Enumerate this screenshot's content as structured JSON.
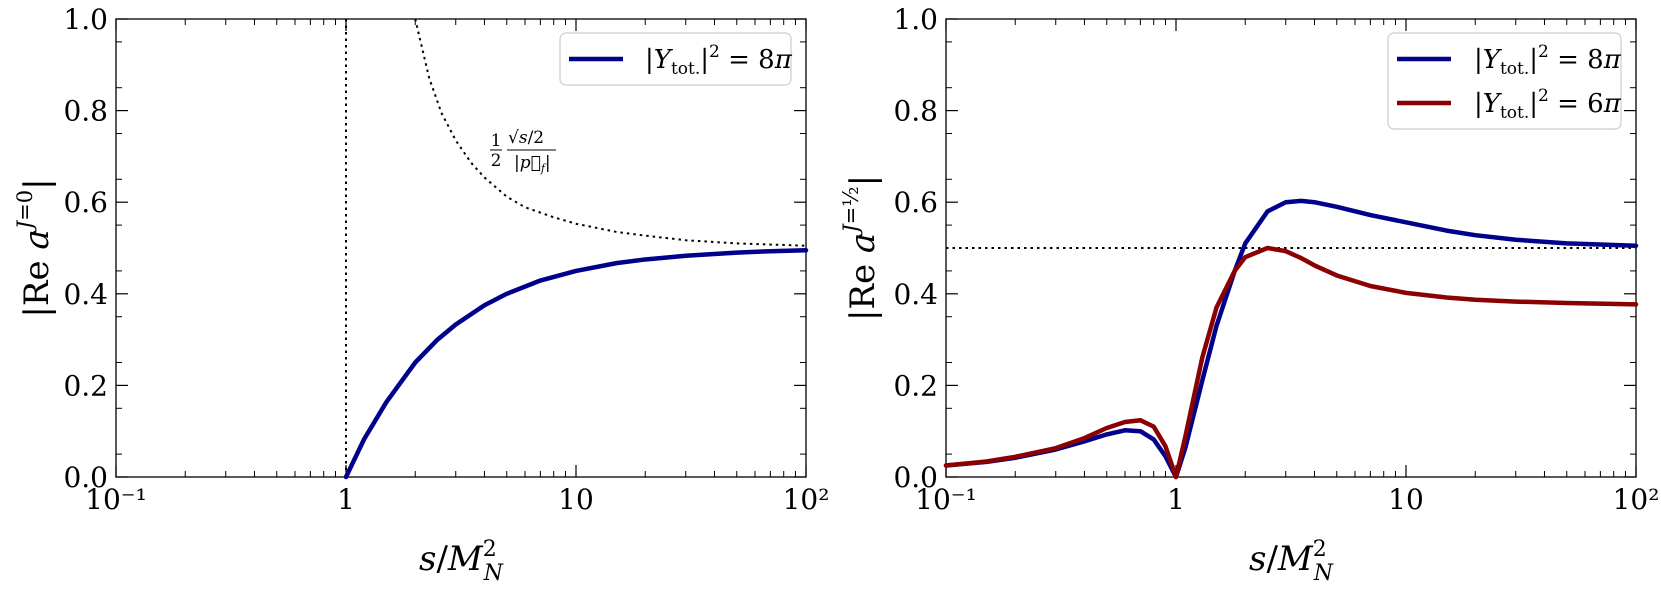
{
  "chart_data": [
    {
      "type": "line",
      "xscale": "log",
      "xlim": [
        0.1,
        100
      ],
      "ylim": [
        0,
        1.0
      ],
      "xticks": [
        {
          "value": 0.1,
          "label": "10⁻¹"
        },
        {
          "value": 1,
          "label": "1"
        },
        {
          "value": 10,
          "label": "10"
        },
        {
          "value": 100,
          "label": "10²"
        }
      ],
      "yticks": [
        "0.0",
        "0.2",
        "0.4",
        "0.6",
        "0.8",
        "1.0"
      ],
      "xlabel": "s/M²N",
      "ylabel": "|Re a^{J=0}|",
      "legend_position": "top-right",
      "grid": false,
      "series": [
        {
          "name": "|Ytot.|² = 8π",
          "color": "#00008b",
          "style": "solid",
          "x": [
            1,
            1.2,
            1.5,
            2,
            2.5,
            3,
            4,
            5,
            7,
            10,
            15,
            20,
            30,
            50,
            70,
            100
          ],
          "y": [
            0.0,
            0.083,
            0.164,
            0.25,
            0.3,
            0.333,
            0.375,
            0.4,
            0.429,
            0.45,
            0.467,
            0.475,
            0.483,
            0.49,
            0.493,
            0.495
          ]
        }
      ],
      "reference_lines": [
        {
          "kind": "vertical",
          "x": 1,
          "color": "#000000",
          "style": "dotted"
        },
        {
          "kind": "curve",
          "label": "½ √s/2 / |p⃗f|",
          "color": "#000000",
          "style": "dotted",
          "x": [
            2,
            2.3,
            2.6,
            3,
            3.5,
            4,
            5,
            6,
            8,
            10,
            15,
            20,
            30,
            50,
            100
          ],
          "y": [
            1.0,
            0.871,
            0.795,
            0.735,
            0.686,
            0.654,
            0.612,
            0.589,
            0.567,
            0.553,
            0.535,
            0.527,
            0.517,
            0.51,
            0.505
          ]
        }
      ]
    },
    {
      "type": "line",
      "xscale": "log",
      "xlim": [
        0.1,
        100
      ],
      "ylim": [
        0,
        1.0
      ],
      "xticks": [
        {
          "value": 0.1,
          "label": "10⁻¹"
        },
        {
          "value": 1,
          "label": "1"
        },
        {
          "value": 10,
          "label": "10"
        },
        {
          "value": 100,
          "label": "10²"
        }
      ],
      "yticks": [
        "0.0",
        "0.2",
        "0.4",
        "0.6",
        "0.8",
        "1.0"
      ],
      "xlabel": "s/M²N",
      "ylabel": "|Re a^{J=½}|",
      "legend_position": "top-right",
      "grid": false,
      "series": [
        {
          "name": "|Ytot.|² = 8π",
          "color": "#00008b",
          "style": "solid",
          "x": [
            0.1,
            0.15,
            0.2,
            0.3,
            0.4,
            0.5,
            0.6,
            0.7,
            0.8,
            0.9,
            1.0,
            1.1,
            1.3,
            1.5,
            1.8,
            2,
            2.5,
            3,
            3.5,
            4,
            5,
            7,
            10,
            15,
            20,
            30,
            50,
            100
          ],
          "y": [
            0.025,
            0.033,
            0.042,
            0.06,
            0.078,
            0.093,
            0.102,
            0.1,
            0.082,
            0.045,
            0.0,
            0.065,
            0.21,
            0.33,
            0.45,
            0.51,
            0.58,
            0.6,
            0.603,
            0.6,
            0.59,
            0.572,
            0.556,
            0.538,
            0.528,
            0.518,
            0.51,
            0.505
          ]
        },
        {
          "name": "|Ytot.|² = 6π",
          "color": "#8b0000",
          "style": "solid",
          "x": [
            0.1,
            0.15,
            0.2,
            0.3,
            0.4,
            0.5,
            0.6,
            0.7,
            0.8,
            0.9,
            1.0,
            1.1,
            1.3,
            1.5,
            1.8,
            2,
            2.5,
            3,
            3.5,
            4,
            5,
            7,
            10,
            15,
            20,
            30,
            50,
            100
          ],
          "y": [
            0.025,
            0.034,
            0.044,
            0.063,
            0.085,
            0.107,
            0.12,
            0.124,
            0.11,
            0.067,
            0.0,
            0.09,
            0.26,
            0.37,
            0.45,
            0.48,
            0.5,
            0.493,
            0.478,
            0.462,
            0.44,
            0.417,
            0.402,
            0.392,
            0.387,
            0.383,
            0.38,
            0.377
          ]
        }
      ],
      "reference_lines": [
        {
          "kind": "horizontal",
          "y": 0.5,
          "color": "#000000",
          "style": "dotted"
        }
      ]
    }
  ]
}
